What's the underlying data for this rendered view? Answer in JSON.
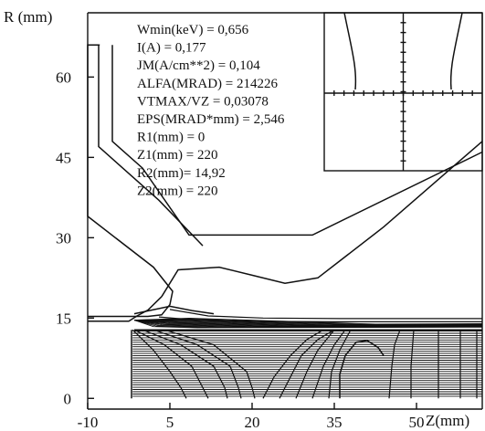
{
  "chart_data": {
    "type": "line",
    "title": "",
    "ylabel": "R (mm)",
    "xlabel": "Z(mm)",
    "xlim": [
      -10,
      62
    ],
    "ylim": [
      -2,
      72
    ],
    "xticks": [
      "-10",
      "5",
      "20",
      "35",
      "50"
    ],
    "yticks": [
      "0",
      "15",
      "30",
      "45",
      "60"
    ],
    "grid": false,
    "parameters": [
      "Wmin(keV) = 0,656",
      "I(A) = 0,177",
      "JM(A/cm**2) = 0,104",
      "ALFA(MRAD) = 214226",
      "VTMAX/VZ = 0,03078",
      "EPS(MRAD*mm) = 2,546",
      "R1(mm) = 0",
      "Z1(mm) = 220",
      "R2(mm)= 14,92",
      "Z2(mm) = 220"
    ],
    "electrodes": {
      "cathode_upper": [
        [
          -7.8,
          66
        ],
        [
          -10,
          66
        ],
        [
          -10,
          34
        ],
        [
          2,
          24.5
        ],
        [
          5.5,
          20
        ],
        [
          5,
          17.5
        ],
        [
          3.5,
          15.6
        ],
        [
          1,
          15.3
        ],
        [
          -10,
          15.3
        ]
      ],
      "cathode_lower": [
        [
          -10,
          14.4
        ],
        [
          -2.5,
          14.4
        ],
        [
          -1,
          15.4
        ],
        [
          1,
          16.5
        ],
        [
          3.5,
          19
        ]
      ],
      "focus_inner": [
        [
          -5.5,
          66
        ],
        [
          -5.5,
          48
        ],
        [
          0,
          43
        ],
        [
          8.5,
          30.5
        ],
        [
          31,
          30.5
        ],
        [
          62,
          46
        ]
      ],
      "focus_outer": [
        [
          -8,
          66
        ],
        [
          -8,
          47
        ],
        [
          3,
          37
        ],
        [
          11,
          28.5
        ]
      ],
      "anode": [
        [
          3.5,
          19
        ],
        [
          6.5,
          24
        ],
        [
          14,
          24.5
        ],
        [
          20,
          23
        ],
        [
          26,
          21.5
        ],
        [
          32,
          22.5
        ],
        [
          44,
          32
        ],
        [
          62,
          48
        ]
      ],
      "collector_lip": [
        [
          -1.5,
          15.8
        ],
        [
          5,
          17.2
        ],
        [
          9,
          16.4
        ],
        [
          13,
          15.8
        ]
      ],
      "beam_box_top": [
        [
          -1.5,
          12.8
        ],
        [
          62,
          12.8
        ]
      ],
      "beam_box_left": [
        [
          -2,
          12.8
        ],
        [
          -2,
          0
        ]
      ],
      "right_electrode": [
        [
          36,
          0
        ],
        [
          36,
          4.5
        ],
        [
          37,
          8
        ],
        [
          39,
          10.5
        ],
        [
          41,
          10.8
        ],
        [
          43,
          9.5
        ],
        [
          44,
          8
        ]
      ]
    }
  }
}
